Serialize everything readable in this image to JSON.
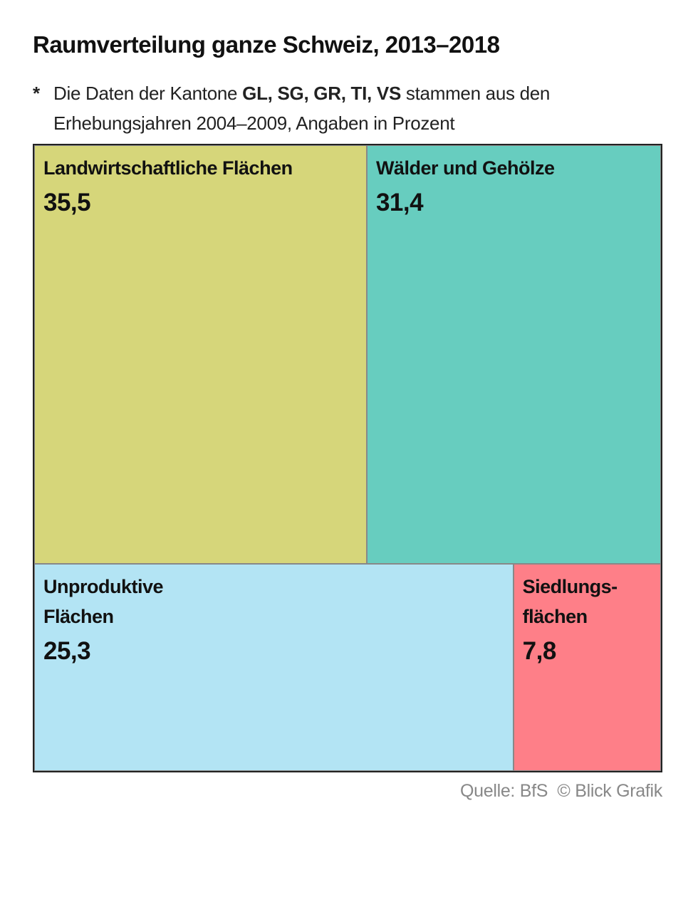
{
  "chart_data": {
    "type": "treemap",
    "title": "Raumverteilung ganze Schweiz, 2013–2018",
    "note": {
      "marker": "*",
      "parts": [
        "Die Daten der Kantone ",
        "GL, SG, GR, TI, VS",
        " stammen aus den Erhebungsjahren 2004–2009, Angaben in Prozent"
      ]
    },
    "categories": [
      "Landwirtschaftliche Flächen",
      "Wälder und Gehölze",
      "Unproduktive\nFlächen",
      "Siedlungs-\nflächen"
    ],
    "values": [
      35.5,
      31.4,
      25.3,
      7.8
    ],
    "value_labels": [
      "35,5",
      "31,4",
      "25,3",
      "7,8"
    ],
    "colors": [
      "#d6d67a",
      "#67cdbf",
      "#b3e4f4",
      "#fe7f88"
    ],
    "source": "Quelle: BfS",
    "credit": "© Blick Grafik"
  }
}
